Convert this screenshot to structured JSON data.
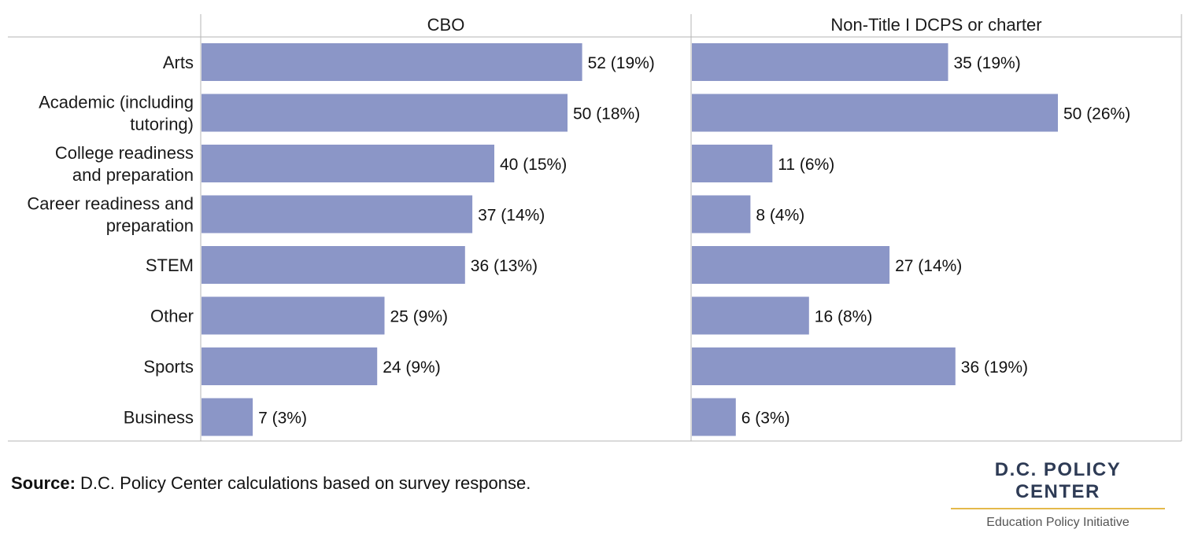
{
  "chart_data": {
    "type": "bar",
    "orientation": "horizontal",
    "categories": [
      "Arts",
      "Academic (including tutoring)",
      "College readiness and preparation",
      "Career readiness and preparation",
      "STEM",
      "Other",
      "Sports",
      "Business"
    ],
    "category_lines": [
      [
        "Arts"
      ],
      [
        "Academic (including",
        "tutoring)"
      ],
      [
        "College readiness",
        "and preparation"
      ],
      [
        "Career readiness and",
        "preparation"
      ],
      [
        "STEM"
      ],
      [
        "Other"
      ],
      [
        "Sports"
      ],
      [
        "Business"
      ]
    ],
    "panels": [
      {
        "name": "CBO",
        "values": [
          52,
          50,
          40,
          37,
          36,
          25,
          24,
          7
        ],
        "labels": [
          "52 (19%)",
          "50 (18%)",
          "40 (15%)",
          "37 (14%)",
          "36 (13%)",
          "25 (9%)",
          "24 (9%)",
          "7 (3%)"
        ]
      },
      {
        "name": "Non-Title I DCPS or charter",
        "values": [
          35,
          50,
          11,
          8,
          27,
          16,
          36,
          6
        ],
        "labels": [
          "35 (19%)",
          "50 (26%)",
          "11 (6%)",
          "8 (4%)",
          "27 (14%)",
          "16 (8%)",
          "36 (19%)",
          "6 (3%)"
        ]
      }
    ],
    "bar_color": "#8b96c7",
    "grid": false
  },
  "source": {
    "bold": "Source:",
    "text": " D.C. Policy Center calculations based on survey response."
  },
  "logo": {
    "name": "D.C. POLICY CENTER",
    "subtitle": "Education Policy Initiative",
    "accent": "#e4b94a"
  }
}
